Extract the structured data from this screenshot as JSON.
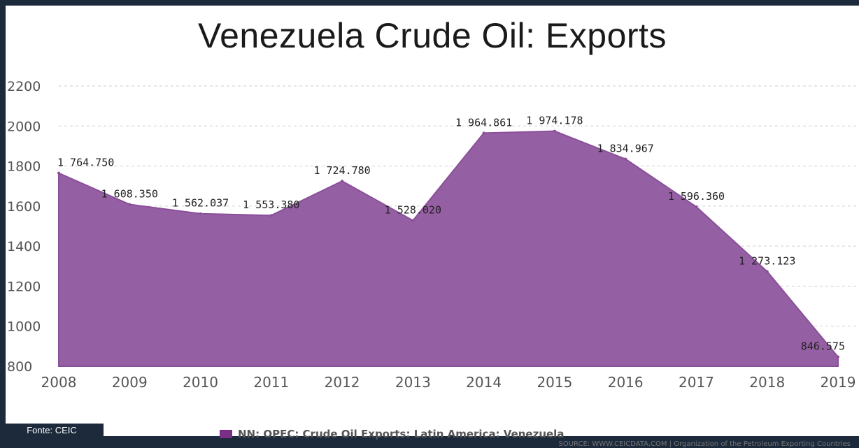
{
  "title": "Venezuela Crude Oil: Exports",
  "colors": {
    "area": "#955fa3",
    "area_edge": "#8a4f99",
    "grid": "#cfcfcf",
    "swatch": "#7b2e86"
  },
  "legend": {
    "label": "NN: OPEC: Crude Oil Exports: Latin America: Venezuela"
  },
  "source": "SOURCE: WWW.CEICDATA.COM | Organization of the Petroleum Exporting Countries",
  "fonte": "Fonte: CEIC",
  "chart_data": {
    "type": "area",
    "title": "Venezuela Crude Oil: Exports",
    "x": [
      2008,
      2009,
      2010,
      2011,
      2012,
      2013,
      2014,
      2015,
      2016,
      2017,
      2018,
      2019
    ],
    "xlabels": [
      "2008",
      "2009",
      "2010",
      "2011",
      "2012",
      "2013",
      "2014",
      "2015",
      "2016",
      "2017",
      "2018",
      "2019"
    ],
    "series": [
      {
        "name": "NN: OPEC: Crude Oil Exports: Latin America: Venezuela",
        "values": [
          1764.75,
          1608.35,
          1562.037,
          1553.38,
          1724.78,
          1528.02,
          1964.861,
          1974.178,
          1834.967,
          1596.36,
          1273.123,
          846.575
        ],
        "labels": [
          "1 764.750",
          "1 608.350",
          "1 562.037",
          "1 553.380",
          "1 724.780",
          "1 528.020",
          "1 964.861",
          "1 974.178",
          "1 834.967",
          "1 596.360",
          "1 273.123",
          "846.575"
        ]
      }
    ],
    "yticks": [
      800,
      1000,
      1200,
      1400,
      1600,
      1800,
      2000,
      2200
    ],
    "ylim": [
      800,
      2200
    ],
    "grid": true,
    "legend_position": "bottom"
  }
}
